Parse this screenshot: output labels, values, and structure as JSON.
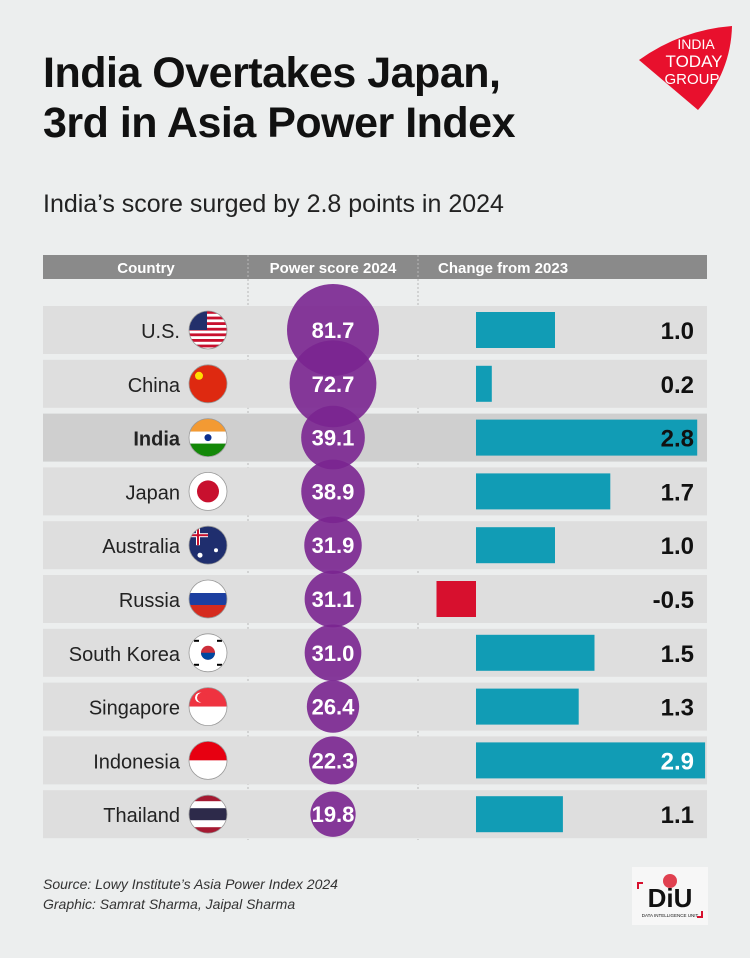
{
  "title_line1": "India Overtakes Japan,",
  "title_line2": "3rd in Asia Power Index",
  "subtitle": "India’s score surged by 2.8 points in 2024",
  "logo_text": "INDIA TODAY GROUP",
  "footer": {
    "source": "Source: Lowy Institute’s Asia Power Index 2024",
    "credit": "Graphic: Samrat Sharma, Jaipal Sharma"
  },
  "diu_logo_text": "DiU DATA INTELLIGENCE UNIT",
  "colors": {
    "circle": "#7a2590",
    "positive": "#119cb5",
    "negative": "#d7102e",
    "header": "#8a8a8a",
    "highlight": "#cfcfcf",
    "row": "#dedede"
  },
  "chart_data": {
    "type": "table",
    "columns": [
      "Country",
      "Power score 2024",
      "Change from 2023"
    ],
    "highlight": "India",
    "rows": [
      {
        "country": "U.S.",
        "flag": "us-flag",
        "score": 81.7,
        "change": 1.0,
        "change_label": "1.0"
      },
      {
        "country": "China",
        "flag": "china-flag",
        "score": 72.7,
        "change": 0.2,
        "change_label": "0.2"
      },
      {
        "country": "India",
        "flag": "india-flag",
        "score": 39.1,
        "change": 2.8,
        "change_label": "2.8"
      },
      {
        "country": "Japan",
        "flag": "japan-flag",
        "score": 38.9,
        "change": 1.7,
        "change_label": "1.7"
      },
      {
        "country": "Australia",
        "flag": "australia-flag",
        "score": 31.9,
        "change": 1.0,
        "change_label": "1.0"
      },
      {
        "country": "Russia",
        "flag": "russia-flag",
        "score": 31.1,
        "change": -0.5,
        "change_label": "-0.5"
      },
      {
        "country": "South Korea",
        "flag": "south-korea-flag",
        "score": 31.0,
        "change": 1.5,
        "change_label": "1.5"
      },
      {
        "country": "Singapore",
        "flag": "singapore-flag",
        "score": 26.4,
        "change": 1.3,
        "change_label": "1.3"
      },
      {
        "country": "Indonesia",
        "flag": "indonesia-flag",
        "score": 22.3,
        "change": 2.9,
        "change_label": "2.9"
      },
      {
        "country": "Thailand",
        "flag": "thailand-flag",
        "score": 19.8,
        "change": 1.1,
        "change_label": "1.1"
      }
    ]
  }
}
